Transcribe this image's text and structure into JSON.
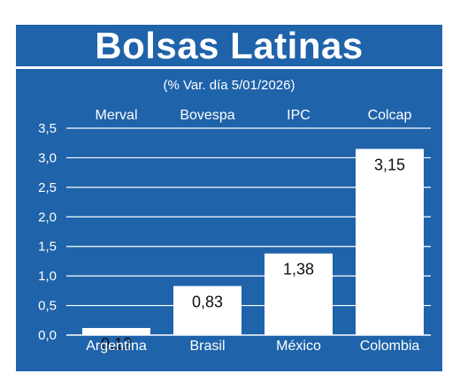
{
  "chart_data": {
    "type": "bar",
    "title": "Bolsas Latinas",
    "subtitle": "(% Var. día 5/01/2026)",
    "index_names": [
      "Merval",
      "Bovespa",
      "IPC",
      "Colcap"
    ],
    "categories": [
      "Argentina",
      "Brasil",
      "México",
      "Colombia"
    ],
    "values": [
      0.12,
      0.83,
      1.38,
      3.15
    ],
    "value_labels": [
      "0,12",
      "0,83",
      "1,38",
      "3,15"
    ],
    "ylim": [
      0,
      3.5
    ],
    "yticks": [
      0,
      0.5,
      1.0,
      1.5,
      2.0,
      2.5,
      3.0,
      3.5
    ],
    "ytick_labels": [
      "0,0",
      "0,5",
      "1,0",
      "1,5",
      "2,0",
      "2,5",
      "3,0",
      "3,5"
    ],
    "grid": true,
    "xlabel": "",
    "ylabel": ""
  },
  "colors": {
    "panel": "#1f63aa",
    "bar": "#ffffff",
    "text_on_panel": "#ffffff",
    "text_on_bar": "#111111",
    "grid": "#ffffff"
  }
}
